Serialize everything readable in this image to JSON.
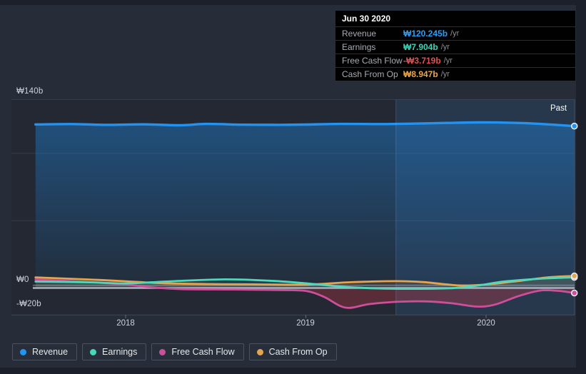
{
  "past_label": "Past",
  "tooltip": {
    "date": "Jun 30 2020",
    "rows": [
      {
        "label": "Revenue",
        "value": "₩120.245b",
        "suffix": "/yr",
        "color": "#2e9df5"
      },
      {
        "label": "Earnings",
        "value": "₩7.904b",
        "suffix": "/yr",
        "color": "#3ed2b4"
      },
      {
        "label": "Free Cash Flow",
        "value": "-₩3.719b",
        "suffix": "/yr",
        "color": "#e25151"
      },
      {
        "label": "Cash From Op",
        "value": "₩8.947b",
        "suffix": "/yr",
        "color": "#eba549"
      }
    ]
  },
  "y_axis_labels": [
    "₩140b",
    "₩0",
    "-₩20b"
  ],
  "x_axis_labels": [
    "2018",
    "2019",
    "2020"
  ],
  "legend": [
    {
      "label": "Revenue",
      "color": "#2196f3"
    },
    {
      "label": "Earnings",
      "color": "#45d7b8"
    },
    {
      "label": "Free Cash Flow",
      "color": "#c9519a"
    },
    {
      "label": "Cash From Op",
      "color": "#e2a54e"
    }
  ],
  "chart_data": {
    "type": "area",
    "title": "Past earnings and revenue history (₩ billions, /yr)",
    "x_unit": "year",
    "x_range": [
      2017.5,
      2020.5
    ],
    "x_ticks": [
      2018,
      2019,
      2020
    ],
    "ylim_b": [
      -20,
      140
    ],
    "gridlines_b": [
      140,
      100,
      50,
      -20
    ],
    "zero_line_b": 0,
    "past_region_start": 2019.5,
    "grid": true,
    "legend_position": "bottom",
    "series": [
      {
        "name": "Revenue",
        "color": "#2492f0",
        "width": 3.4,
        "fill": "revenue-gradient",
        "points": [
          [
            2017.5,
            121.5
          ],
          [
            2017.7,
            121.8
          ],
          [
            2017.9,
            121.2
          ],
          [
            2018.1,
            121.6
          ],
          [
            2018.3,
            120.9
          ],
          [
            2018.45,
            121.9
          ],
          [
            2018.65,
            121.3
          ],
          [
            2018.85,
            121.2
          ],
          [
            2019.0,
            121.4
          ],
          [
            2019.2,
            121.9
          ],
          [
            2019.45,
            121.8
          ],
          [
            2019.7,
            122.4
          ],
          [
            2019.95,
            123.0
          ],
          [
            2020.15,
            122.7
          ],
          [
            2020.3,
            121.9
          ],
          [
            2020.49,
            120.245
          ]
        ]
      },
      {
        "name": "Free Cash Flow",
        "color": "#cd4f9b",
        "width": 2.8,
        "fill": "rgba(215,60,70,0.30)",
        "points": [
          [
            2017.5,
            6.4
          ],
          [
            2017.8,
            4.4
          ],
          [
            2018.0,
            2.6
          ],
          [
            2018.15,
            0.5
          ],
          [
            2018.3,
            -0.8
          ],
          [
            2018.6,
            -1.1
          ],
          [
            2018.85,
            -1.5
          ],
          [
            2019.0,
            -2.2
          ],
          [
            2019.1,
            -6.5
          ],
          [
            2019.22,
            -14.6
          ],
          [
            2019.35,
            -12.0
          ],
          [
            2019.5,
            -10.3
          ],
          [
            2019.65,
            -9.9
          ],
          [
            2019.8,
            -11.2
          ],
          [
            2019.95,
            -13.8
          ],
          [
            2020.05,
            -12.3
          ],
          [
            2020.18,
            -6.0
          ],
          [
            2020.3,
            -1.9
          ],
          [
            2020.4,
            -2.1
          ],
          [
            2020.49,
            -3.719
          ]
        ]
      },
      {
        "name": "Cash From Op",
        "color": "#e5a54f",
        "width": 2.8,
        "fill": "rgba(229,165,79,0.12)",
        "points": [
          [
            2017.5,
            7.9
          ],
          [
            2017.85,
            6.0
          ],
          [
            2018.0,
            5.0
          ],
          [
            2018.2,
            3.6
          ],
          [
            2018.45,
            2.9
          ],
          [
            2018.7,
            2.7
          ],
          [
            2019.0,
            2.5
          ],
          [
            2019.25,
            4.3
          ],
          [
            2019.5,
            5.1
          ],
          [
            2019.65,
            4.4
          ],
          [
            2019.85,
            1.9
          ],
          [
            2020.0,
            2.6
          ],
          [
            2020.2,
            5.5
          ],
          [
            2020.35,
            8.0
          ],
          [
            2020.49,
            8.947
          ]
        ]
      },
      {
        "name": "Earnings",
        "color": "#4fd8bb",
        "width": 2.8,
        "fill": "rgba(79,216,187,0.10)",
        "points": [
          [
            2017.5,
            4.8
          ],
          [
            2017.8,
            4.2
          ],
          [
            2018.0,
            3.4
          ],
          [
            2018.25,
            5.0
          ],
          [
            2018.55,
            6.4
          ],
          [
            2018.8,
            5.4
          ],
          [
            2019.0,
            3.5
          ],
          [
            2019.2,
            1.0
          ],
          [
            2019.4,
            -0.3
          ],
          [
            2019.6,
            -0.6
          ],
          [
            2019.8,
            -0.2
          ],
          [
            2019.95,
            1.8
          ],
          [
            2020.1,
            4.8
          ],
          [
            2020.3,
            6.9
          ],
          [
            2020.49,
            7.904
          ]
        ]
      }
    ],
    "end_values_b": {
      "Revenue": 120.245,
      "Earnings": 7.904,
      "Free Cash Flow": -3.719,
      "Cash From Op": 8.947
    }
  }
}
